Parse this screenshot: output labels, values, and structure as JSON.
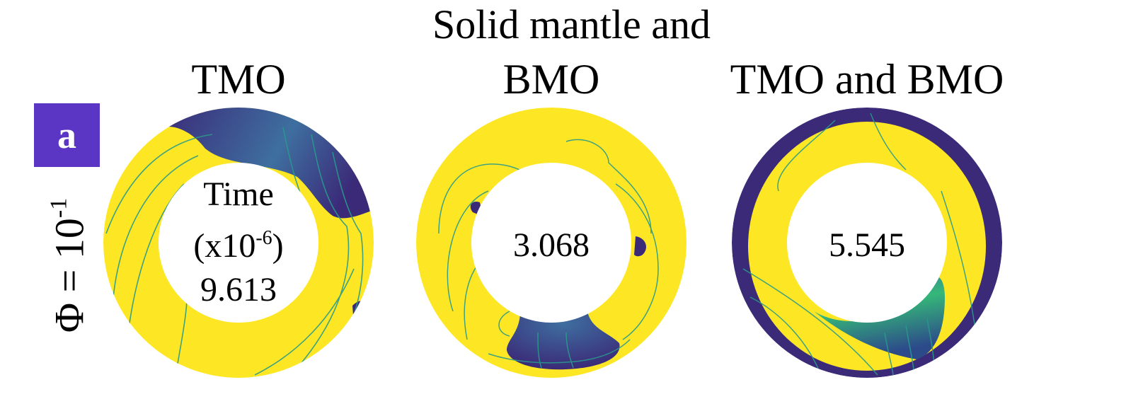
{
  "figure": {
    "header": "Solid mantle and",
    "columns": [
      {
        "title": "TMO"
      },
      {
        "title": "BMO"
      },
      {
        "title": "TMO and BMO"
      }
    ],
    "panel_label": "a",
    "row_label": {
      "prefix": "Φ = 10",
      "exponent": "-1"
    },
    "time": {
      "label": "Time",
      "unit_prefix": "(x10",
      "unit_exponent": "-6",
      "unit_suffix": ")",
      "values": [
        "9.613",
        "3.068",
        "5.545"
      ]
    },
    "colors": {
      "solid": "#fde725",
      "melt": "#3b2a78",
      "melt_mid": "#3e6fa0",
      "melt_light": "#35b779",
      "badge": "#5b36c4",
      "streamline": "#2a9a8a"
    }
  }
}
